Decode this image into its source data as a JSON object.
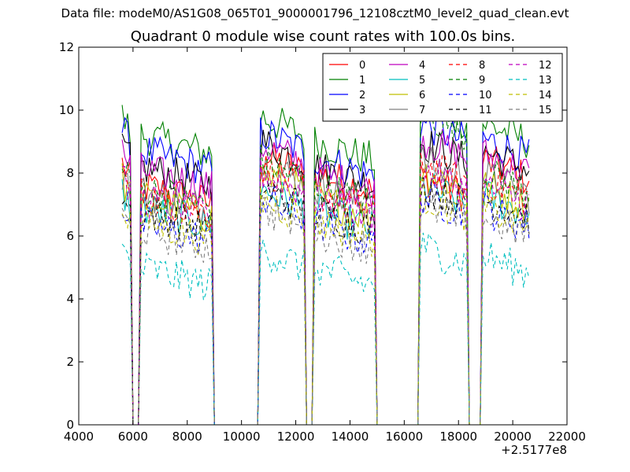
{
  "figure": {
    "suptitle": "Data file: modeM0/AS1G08_065T01_9000001796_12108cztM0_level2_quad_clean.evt",
    "title": "Quadrant 0 module wise count rates with 100.0s bins.",
    "x_offset_label": "+2.5177e8"
  },
  "chart_data": {
    "type": "line",
    "title": "Quadrant 0 module wise count rates with 100.0s bins.",
    "xlabel": "",
    "ylabel": "",
    "xlim": [
      4000,
      22000
    ],
    "ylim": [
      0,
      12
    ],
    "x_offset": 251770000,
    "xticks": [
      4000,
      6000,
      8000,
      10000,
      12000,
      14000,
      16000,
      18000,
      20000,
      22000
    ],
    "yticks": [
      0,
      2,
      4,
      6,
      8,
      10,
      12
    ],
    "grid": false,
    "legend_position": "top-right",
    "legend_columns": 4,
    "bin_size_s": 100,
    "series": [
      {
        "name": "0",
        "color": "#ff0000",
        "dash": "solid",
        "segment_levels": [
          8.3,
          7.6,
          8.6,
          8.0,
          7.9,
          8.4
        ]
      },
      {
        "name": "1",
        "color": "#008000",
        "dash": "solid",
        "segment_levels": [
          9.8,
          9.2,
          9.8,
          9.0,
          10.2,
          9.6
        ]
      },
      {
        "name": "2",
        "color": "#0000ff",
        "dash": "solid",
        "segment_levels": [
          9.4,
          8.7,
          9.3,
          8.5,
          9.6,
          9.1
        ]
      },
      {
        "name": "3",
        "color": "#000000",
        "dash": "solid",
        "segment_levels": [
          8.9,
          8.2,
          9.0,
          8.2,
          9.0,
          8.7
        ]
      },
      {
        "name": "4",
        "color": "#bf00bf",
        "dash": "solid",
        "segment_levels": [
          8.7,
          8.1,
          8.9,
          8.0,
          9.1,
          8.6
        ]
      },
      {
        "name": "5",
        "color": "#00bfbf",
        "dash": "solid",
        "segment_levels": [
          7.4,
          6.9,
          7.5,
          6.8,
          7.6,
          7.3
        ]
      },
      {
        "name": "6",
        "color": "#bfbf00",
        "dash": "solid",
        "segment_levels": [
          7.8,
          7.2,
          8.0,
          7.2,
          8.1,
          7.6
        ]
      },
      {
        "name": "7",
        "color": "#808080",
        "dash": "solid",
        "segment_levels": [
          8.0,
          7.4,
          8.3,
          7.5,
          8.4,
          7.9
        ]
      },
      {
        "name": "8",
        "color": "#ff0000",
        "dash": "dashed",
        "segment_levels": [
          7.9,
          7.3,
          8.2,
          7.4,
          8.3,
          7.8
        ]
      },
      {
        "name": "9",
        "color": "#008000",
        "dash": "dashed",
        "segment_levels": [
          8.2,
          7.5,
          8.4,
          7.6,
          9.9,
          8.0
        ]
      },
      {
        "name": "10",
        "color": "#0000ff",
        "dash": "dashed",
        "segment_levels": [
          7.0,
          6.4,
          7.2,
          6.4,
          7.3,
          6.9
        ]
      },
      {
        "name": "11",
        "color": "#000000",
        "dash": "dashed",
        "segment_levels": [
          7.3,
          6.8,
          7.5,
          6.8,
          7.6,
          7.2
        ]
      },
      {
        "name": "12",
        "color": "#bf00bf",
        "dash": "dashed",
        "segment_levels": [
          7.8,
          7.2,
          8.0,
          7.2,
          8.1,
          7.6
        ]
      },
      {
        "name": "13",
        "color": "#00bfbf",
        "dash": "dashed",
        "segment_levels": [
          5.6,
          5.0,
          5.6,
          5.0,
          5.7,
          5.4
        ]
      },
      {
        "name": "14",
        "color": "#bfbf00",
        "dash": "dashed",
        "segment_levels": [
          7.0,
          6.5,
          7.2,
          6.5,
          7.3,
          6.9
        ]
      },
      {
        "name": "15",
        "color": "#808080",
        "dash": "dashed",
        "segment_levels": [
          6.7,
          6.2,
          6.9,
          6.2,
          7.0,
          6.6
        ]
      }
    ],
    "active_intervals": [
      [
        5600,
        5950
      ],
      [
        6300,
        8950
      ],
      [
        10700,
        12300
      ],
      [
        12700,
        14900
      ],
      [
        16600,
        18300
      ],
      [
        18900,
        20600
      ]
    ]
  }
}
